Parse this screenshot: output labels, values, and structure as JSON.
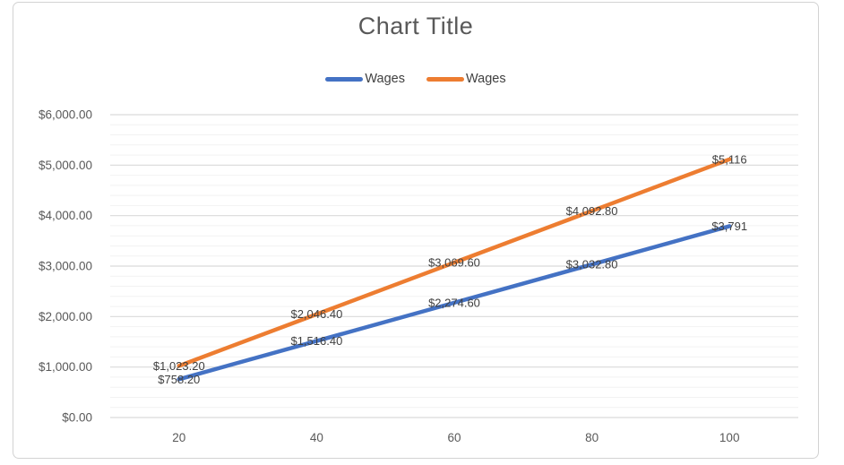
{
  "chart_data": {
    "type": "line",
    "title": "Chart Title",
    "categories": [
      "20",
      "40",
      "60",
      "80",
      "100"
    ],
    "series": [
      {
        "name": "Wages",
        "color": "#4472C4",
        "values": [
          758.2,
          1516.4,
          2274.6,
          3032.8,
          3791
        ],
        "point_labels": [
          "$758.20",
          "$1,516.40",
          "$2,274.60",
          "$3,032.80",
          "$3,791"
        ]
      },
      {
        "name": "Wages",
        "color": "#ED7D31",
        "values": [
          1023.2,
          2046.4,
          3069.6,
          4092.8,
          5116
        ],
        "point_labels": [
          "$1,023.20",
          "$2,046.40",
          "$3,069.60",
          "$4,092.80",
          "$5,116"
        ]
      }
    ],
    "y_axis": {
      "min": 0,
      "max": 6000,
      "major_unit": 1000,
      "minor_unit": 200,
      "tick_labels": [
        "$0.00",
        "$1,000.00",
        "$2,000.00",
        "$3,000.00",
        "$4,000.00",
        "$5,000.00",
        "$6,000.00"
      ]
    },
    "x_axis": {
      "tick_labels": [
        "20",
        "40",
        "60",
        "80",
        "100"
      ]
    },
    "legend": {
      "position": "top",
      "entries": [
        {
          "label": "Wages",
          "color": "#4472C4"
        },
        {
          "label": "Wages",
          "color": "#ED7D31"
        }
      ]
    },
    "grid": {
      "major": true,
      "minor": true
    },
    "colors": {
      "title_text": "#595959",
      "axis_text": "#595959",
      "data_label_text": "#404040",
      "major_grid": "#D9D9D9",
      "minor_grid": "#F2F2F2",
      "frame_border": "#D3D3D3",
      "background": "#FFFFFF"
    }
  }
}
